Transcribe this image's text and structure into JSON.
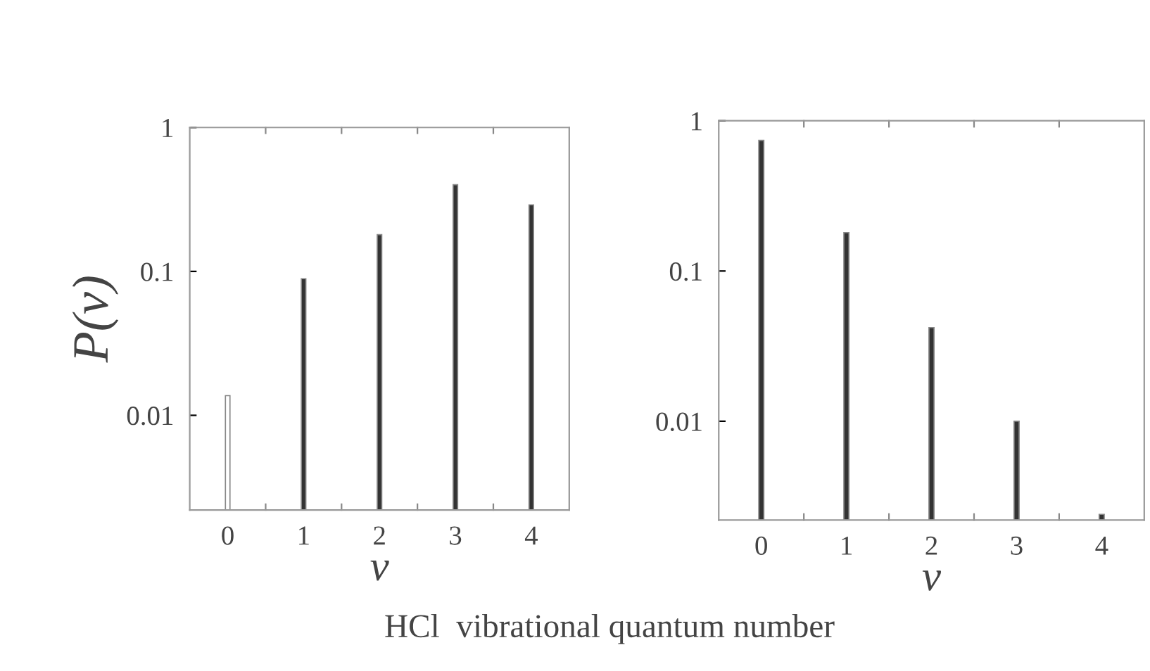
{
  "chart_data": [
    {
      "type": "bar",
      "ylabel": "P(v)",
      "xlabel": "v",
      "categories": [
        "0",
        "1",
        "2",
        "3",
        "4"
      ],
      "values": [
        0.0137,
        0.089,
        0.18,
        0.4,
        0.29
      ],
      "colors": [
        "#ffffff",
        "#333333",
        "#333333",
        "#333333",
        "#333333"
      ],
      "log": true,
      "ylim": [
        0.0022,
        1
      ],
      "yticks": [
        0.01,
        0.1,
        1
      ],
      "grid": false,
      "annotations": [
        "HCl  vibrational quantum number"
      ]
    },
    {
      "type": "bar",
      "xlabel": "v",
      "categories": [
        "0",
        "1",
        "2",
        "3",
        "4"
      ],
      "values": [
        0.74,
        0.18,
        0.042,
        0.01,
        0.0024
      ],
      "colors": [
        "#333333",
        "#333333",
        "#333333",
        "#333333",
        "#333333"
      ],
      "log": true,
      "ylim": [
        0.0022,
        1
      ],
      "yticks": [
        0.01,
        0.1,
        1
      ],
      "grid": false
    }
  ]
}
